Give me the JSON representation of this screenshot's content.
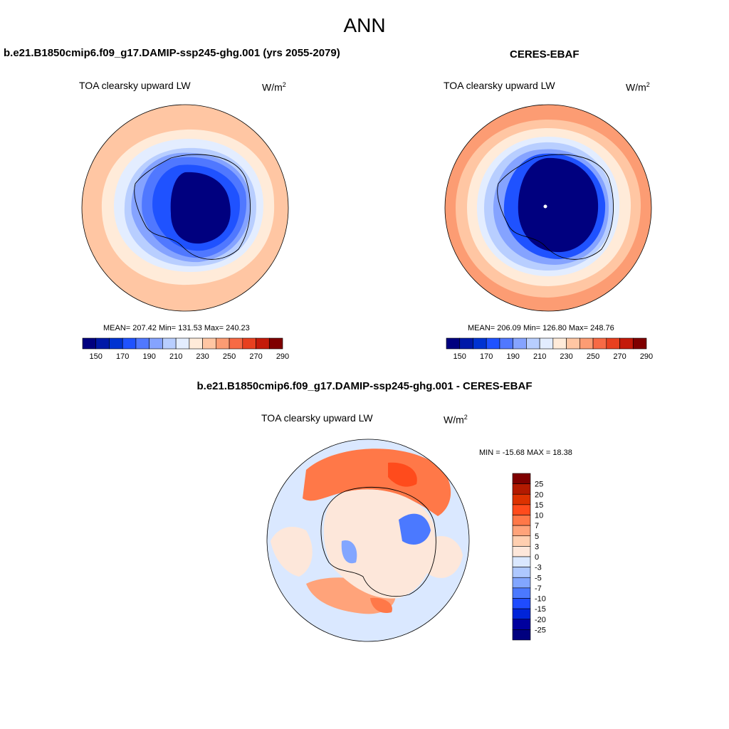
{
  "page_title": "ANN",
  "panels": {
    "model": {
      "title": "b.e21.B1850cmip6.f09_g17.DAMIP-ssp245-ghg.001 (yrs 2055-2079)",
      "variable": "TOA clearsky upward LW",
      "units_base": "W/m",
      "units_sup": "2",
      "stats": "MEAN= 207.42  Min= 131.53  Max= 240.23"
    },
    "obs": {
      "title": "CERES-EBAF",
      "variable": "TOA clearsky upward LW",
      "units_base": "W/m",
      "units_sup": "2",
      "stats": "MEAN= 206.09  Min= 126.80  Max= 248.76"
    },
    "diff": {
      "title": "b.e21.B1850cmip6.f09_g17.DAMIP-ssp245-ghg.001 - CERES-EBAF",
      "variable": "TOA clearsky upward LW",
      "units_base": "W/m",
      "units_sup": "2",
      "stats": "MIN = -15.68 MAX =  18.38"
    }
  },
  "colorbars": {
    "absolute": {
      "colors": [
        "#00007f",
        "#0019a8",
        "#0033d1",
        "#1f52ff",
        "#5078ff",
        "#85a3ff",
        "#b8ceff",
        "#e3edff",
        "#ffebd9",
        "#ffc6a3",
        "#fc9c73",
        "#f76a45",
        "#e8401f",
        "#c41a0a",
        "#7f0000"
      ],
      "tick_labels": [
        "150",
        "170",
        "190",
        "210",
        "230",
        "250",
        "270",
        "290"
      ]
    },
    "difference": {
      "colors": [
        "#7f0000",
        "#b31a00",
        "#dd3200",
        "#ff4b1c",
        "#ff7848",
        "#ffa37a",
        "#ffcfb0",
        "#fde7da",
        "#dae8ff",
        "#aec8ff",
        "#82a6ff",
        "#4b79ff",
        "#1f4cff",
        "#0024d9",
        "#00009e",
        "#00007f"
      ],
      "tick_labels": [
        "25",
        "20",
        "15",
        "10",
        "7",
        "5",
        "3",
        "0",
        "-3",
        "-5",
        "-7",
        "-10",
        "-15",
        "-20",
        "-25"
      ]
    }
  },
  "map_colors": {
    "model_map": {
      "outer": "#ffc6a3",
      "mid": "#ffebd9",
      "ring1": "#e3edff",
      "ring2": "#b8ceff",
      "ring3": "#85a3ff",
      "ring4": "#5078ff",
      "ring5": "#1f52ff",
      "core": "#00007f"
    },
    "obs_map": {
      "outer": "#fc9c73",
      "mid": "#ffc6a3",
      "ring0": "#ffebd9",
      "ring1": "#e3edff",
      "ring2": "#b8ceff",
      "ring3": "#85a3ff",
      "ring4": "#1f52ff",
      "core": "#00007f"
    },
    "diff_map": {
      "base": "#dae8ff",
      "warm": "#ff7848",
      "warm2": "#ffa37a",
      "pale": "#fde7da",
      "cool": "#82a6ff",
      "cool2": "#4b79ff"
    }
  }
}
